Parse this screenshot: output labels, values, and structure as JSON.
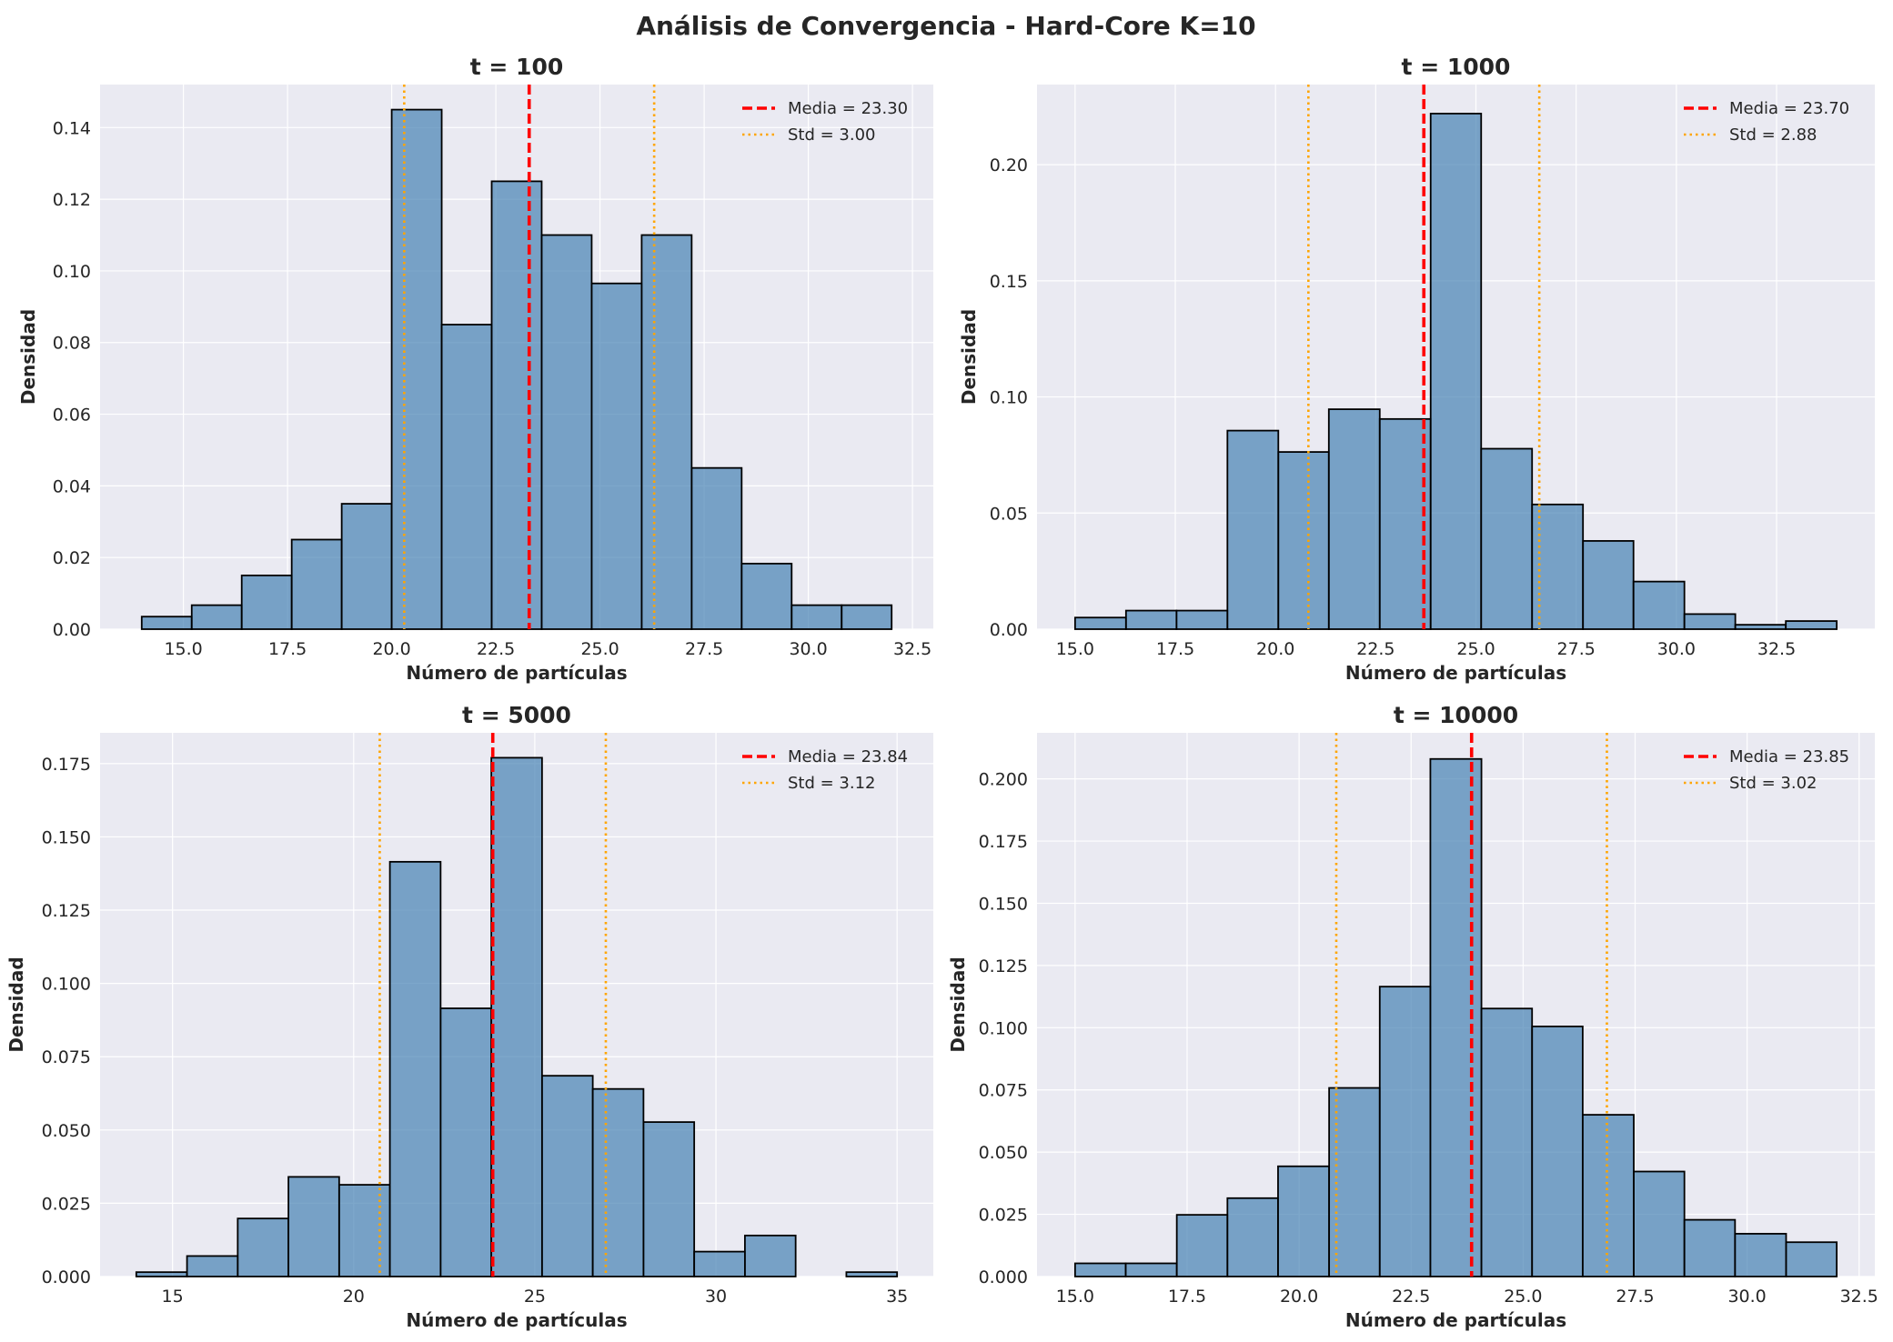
{
  "figure": {
    "title": "Análisis de Convergencia - Hard-Core K=10",
    "colors": {
      "background": "#eaeaf2",
      "grid": "#ffffff",
      "bar_fill": "#4682b4",
      "bar_edge": "#000000",
      "mean_line": "#ff0000",
      "std_line": "#ffa500"
    }
  },
  "chart_data": [
    {
      "type": "bar",
      "title": "t = 100",
      "xlabel": "Número de partículas",
      "ylabel": "Densidad",
      "xlim": [
        13,
        33
      ],
      "ylim": [
        0,
        0.152
      ],
      "xticks": [
        15.0,
        17.5,
        20.0,
        22.5,
        25.0,
        27.5,
        30.0,
        32.5
      ],
      "xtick_labels": [
        "15.0",
        "17.5",
        "20.0",
        "22.5",
        "25.0",
        "27.5",
        "30.0",
        "32.5"
      ],
      "yticks": [
        0,
        0.02,
        0.04,
        0.06,
        0.08,
        0.1,
        0.12,
        0.14
      ],
      "ytick_labels": [
        "0.00",
        "0.02",
        "0.04",
        "0.06",
        "0.08",
        "0.10",
        "0.12",
        "0.14"
      ],
      "bin_edges": [
        14.0,
        15.2,
        16.4,
        17.6,
        18.8,
        20.0,
        21.2,
        22.4,
        23.6,
        24.8,
        26.0,
        27.2,
        28.4,
        29.6,
        30.8,
        32.0
      ],
      "values": [
        0.0035,
        0.0067,
        0.015,
        0.025,
        0.035,
        0.145,
        0.085,
        0.125,
        0.11,
        0.0965,
        0.11,
        0.045,
        0.0183,
        0.0067,
        0.0067
      ],
      "mean": 23.3,
      "std": 3.0,
      "legend": [
        "Media = 23.30",
        "Std = 3.00"
      ],
      "legend_position": "top-right",
      "grid": true
    },
    {
      "type": "bar",
      "title": "t = 1000",
      "xlabel": "Número de partículas",
      "ylabel": "Densidad",
      "xlim": [
        14.05,
        34.95
      ],
      "ylim": [
        0,
        0.2345
      ],
      "xticks": [
        15.0,
        17.5,
        20.0,
        22.5,
        25.0,
        27.5,
        30.0,
        32.5
      ],
      "xtick_labels": [
        "15.0",
        "17.5",
        "20.0",
        "22.5",
        "25.0",
        "27.5",
        "30.0",
        "32.5"
      ],
      "yticks": [
        0,
        0.05,
        0.1,
        0.15,
        0.2
      ],
      "ytick_labels": [
        "0.00",
        "0.05",
        "0.10",
        "0.15",
        "0.20"
      ],
      "bin_edges": [
        15.0,
        16.27,
        17.53,
        18.8,
        20.07,
        21.33,
        22.6,
        23.87,
        25.13,
        26.4,
        27.67,
        28.93,
        30.2,
        31.47,
        32.73,
        34.0
      ],
      "values": [
        0.005,
        0.008,
        0.008,
        0.0855,
        0.0763,
        0.0947,
        0.0905,
        0.222,
        0.0777,
        0.0537,
        0.038,
        0.0205,
        0.0065,
        0.0019,
        0.0035
      ],
      "mean": 23.7,
      "std": 2.88,
      "legend": [
        "Media = 23.70",
        "Std = 2.88"
      ],
      "legend_position": "top-right",
      "grid": true
    },
    {
      "type": "bar",
      "title": "t = 5000",
      "xlabel": "Número de partículas",
      "ylabel": "Densidad",
      "xlim": [
        13.0,
        36.0
      ],
      "ylim": [
        0,
        0.1855
      ],
      "xticks": [
        15,
        20,
        25,
        30,
        35
      ],
      "xtick_labels": [
        "15",
        "20",
        "25",
        "30",
        "35"
      ],
      "yticks": [
        0,
        0.025,
        0.05,
        0.075,
        0.1,
        0.125,
        0.15,
        0.175
      ],
      "ytick_labels": [
        "0.000",
        "0.025",
        "0.050",
        "0.075",
        "0.100",
        "0.125",
        "0.150",
        "0.175"
      ],
      "bin_edges": [
        14.0,
        15.4,
        16.8,
        18.2,
        19.6,
        21.0,
        22.4,
        23.8,
        25.2,
        26.6,
        28.0,
        29.4,
        30.8,
        32.2,
        33.6,
        35.0
      ],
      "values": [
        0.0015,
        0.007,
        0.0198,
        0.034,
        0.0313,
        0.1415,
        0.0915,
        0.177,
        0.0685,
        0.064,
        0.0527,
        0.0085,
        0.014,
        0.0,
        0.0015
      ],
      "mean": 23.84,
      "std": 3.12,
      "legend": [
        "Media = 23.84",
        "Std = 3.12"
      ],
      "legend_position": "top-right",
      "grid": true
    },
    {
      "type": "bar",
      "title": "t = 10000",
      "xlabel": "Número de partículas",
      "ylabel": "Densidad",
      "xlim": [
        14.15,
        32.85
      ],
      "ylim": [
        0,
        0.2185
      ],
      "xticks": [
        15.0,
        17.5,
        20.0,
        22.5,
        25.0,
        27.5,
        30.0,
        32.5
      ],
      "xtick_labels": [
        "15.0",
        "17.5",
        "20.0",
        "22.5",
        "25.0",
        "27.5",
        "30.0",
        "32.5"
      ],
      "yticks": [
        0,
        0.025,
        0.05,
        0.075,
        0.1,
        0.125,
        0.15,
        0.175,
        0.2
      ],
      "ytick_labels": [
        "0.000",
        "0.025",
        "0.050",
        "0.075",
        "0.100",
        "0.125",
        "0.150",
        "0.175",
        "0.200"
      ],
      "bin_edges": [
        15.0,
        16.13,
        17.27,
        18.4,
        19.53,
        20.67,
        21.8,
        22.93,
        24.07,
        25.2,
        26.33,
        27.47,
        28.6,
        29.73,
        30.87,
        32.0
      ],
      "values": [
        0.0053,
        0.0053,
        0.0248,
        0.0315,
        0.0443,
        0.0758,
        0.1165,
        0.208,
        0.1077,
        0.1005,
        0.065,
        0.0422,
        0.0228,
        0.0172,
        0.0138
      ],
      "mean": 23.85,
      "std": 3.02,
      "legend": [
        "Media = 23.85",
        "Std = 3.02"
      ],
      "legend_position": "top-right",
      "grid": true
    }
  ]
}
